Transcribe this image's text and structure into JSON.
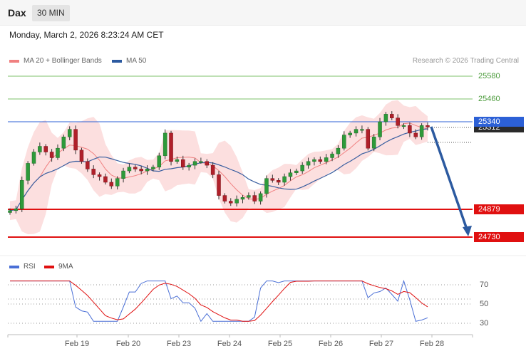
{
  "header": {
    "symbol": "Dax",
    "timeframe": "30 MIN"
  },
  "datetime": "Monday, March 2, 2026 8:23:24 AM CET",
  "legend": {
    "ma20_label": "MA 20 + Bollinger Bands",
    "ma50_label": "MA 50",
    "ma20_color": "#f08080",
    "ma50_color": "#2c5aa0",
    "copyright": "Research © 2026 Trading Central"
  },
  "price_levels": {
    "r2": "25580",
    "r1": "25460",
    "current": "25340",
    "last": "25312",
    "s1": "24879",
    "s2": "24730"
  },
  "rsi_legend": {
    "rsi_label": "RSI",
    "ma_label": "9MA",
    "rsi_color": "#4a6fd6",
    "ma_color": "#e01010"
  },
  "rsi_levels": [
    "70",
    "50",
    "30"
  ],
  "x_axis": [
    "Feb 19",
    "Feb 20",
    "Feb 23",
    "Feb 24",
    "Feb 25",
    "Feb 26",
    "Feb 27",
    "Feb 28"
  ],
  "chart_data": {
    "type": "candlestick",
    "price_axis_labels": [
      25580,
      25460,
      25340,
      24879,
      24730
    ],
    "horizontal_lines": [
      {
        "value": 25580,
        "color": "#7cc26a",
        "kind": "resistance"
      },
      {
        "value": 25460,
        "color": "#7cc26a",
        "kind": "resistance"
      },
      {
        "value": 25340,
        "color": "#2c60d6",
        "kind": "pivot"
      },
      {
        "value": 24879,
        "color": "#e01010",
        "kind": "support"
      },
      {
        "value": 24730,
        "color": "#e01010",
        "kind": "support"
      }
    ],
    "close_series": [
      24870,
      24880,
      25030,
      25120,
      25180,
      25210,
      25180,
      25150,
      25200,
      25260,
      25300,
      25190,
      25130,
      25090,
      25060,
      25050,
      25020,
      25000,
      25040,
      25080,
      25100,
      25090,
      25080,
      25090,
      25100,
      25160,
      25280,
      25130,
      25140,
      25100,
      25110,
      25130,
      25130,
      25110,
      25060,
      24950,
      24920,
      24910,
      24930,
      24940,
      24950,
      24920,
      24960,
      25040,
      25030,
      25020,
      25050,
      25070,
      25080,
      25110,
      25130,
      25140,
      25130,
      25150,
      25170,
      25200,
      25270,
      25280,
      25300,
      25300,
      25200,
      25260,
      25340,
      25380,
      25360,
      25320,
      25320,
      25280,
      25260,
      25320,
      25312
    ],
    "forecast_target": 24730,
    "rsi_ylim": [
      30,
      70
    ]
  }
}
